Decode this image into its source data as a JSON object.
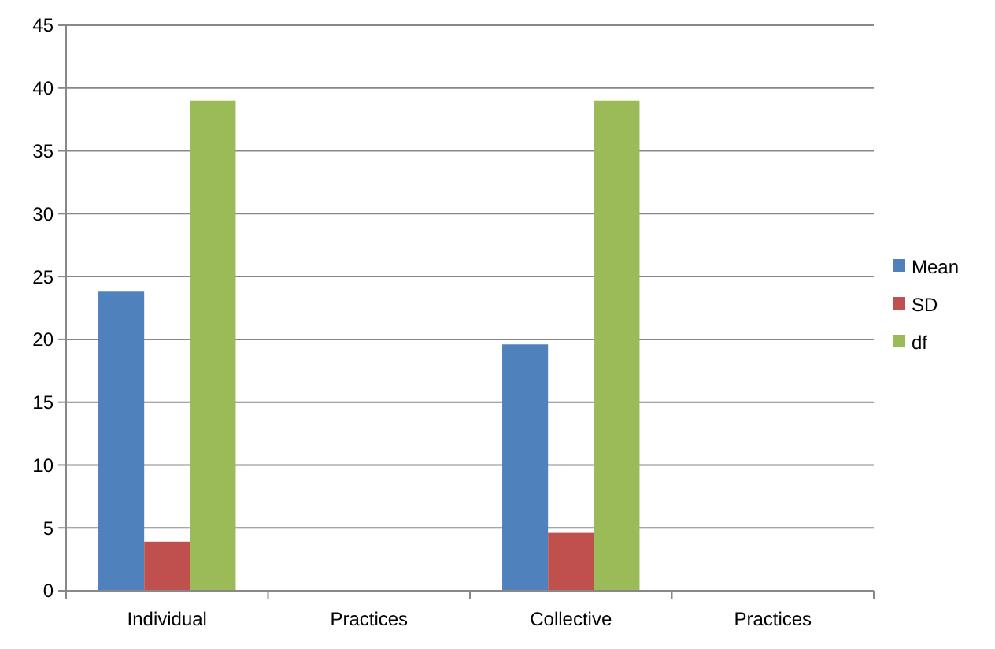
{
  "chart_data": {
    "type": "bar",
    "categories": [
      "Individual",
      "Practices",
      "Collective",
      "Practices"
    ],
    "series": [
      {
        "name": "Mean",
        "color": "#4f81bd",
        "values": [
          23.8,
          null,
          19.6,
          null
        ]
      },
      {
        "name": "SD",
        "color": "#c0504d",
        "values": [
          3.9,
          null,
          4.6,
          null
        ]
      },
      {
        "name": "df",
        "color": "#9bbb59",
        "values": [
          39,
          null,
          39,
          null
        ]
      }
    ],
    "ylim": [
      0,
      45
    ],
    "yticks": [
      0,
      5,
      10,
      15,
      20,
      25,
      30,
      35,
      40,
      45
    ],
    "grid": "y",
    "legend": "right"
  }
}
